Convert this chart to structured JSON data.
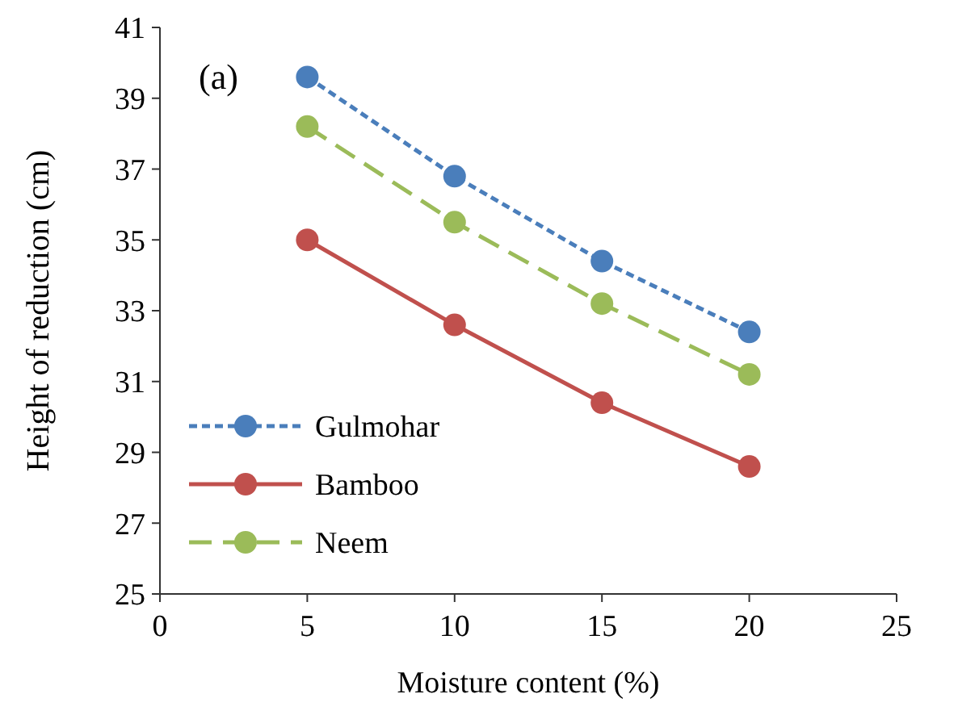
{
  "chart_data": {
    "type": "line",
    "xlabel": "Moisture content (%)",
    "ylabel": "Height of reduction  (cm)",
    "annotations": [
      "(a)"
    ],
    "x": [
      5,
      10,
      15,
      20
    ],
    "xlim": [
      0,
      25
    ],
    "xticks": [
      0,
      5,
      10,
      15,
      20,
      25
    ],
    "ylim": [
      25,
      41
    ],
    "yticks": [
      25,
      27,
      29,
      31,
      33,
      35,
      37,
      39,
      41
    ],
    "grid": false,
    "legend": "bottom left",
    "marker": "circle",
    "series": [
      {
        "name": "Gulmohar",
        "color": "#4a7ebb",
        "line_style": "dotted",
        "values": [
          39.6,
          36.8,
          34.4,
          32.4
        ]
      },
      {
        "name": "Bamboo",
        "color": "#c0504d",
        "line_style": "solid",
        "values": [
          35.0,
          32.6,
          30.4,
          28.6
        ]
      },
      {
        "name": "Neem",
        "color": "#9bbb59",
        "line_style": "dashed",
        "values": [
          38.2,
          35.5,
          33.2,
          31.2
        ]
      }
    ]
  }
}
